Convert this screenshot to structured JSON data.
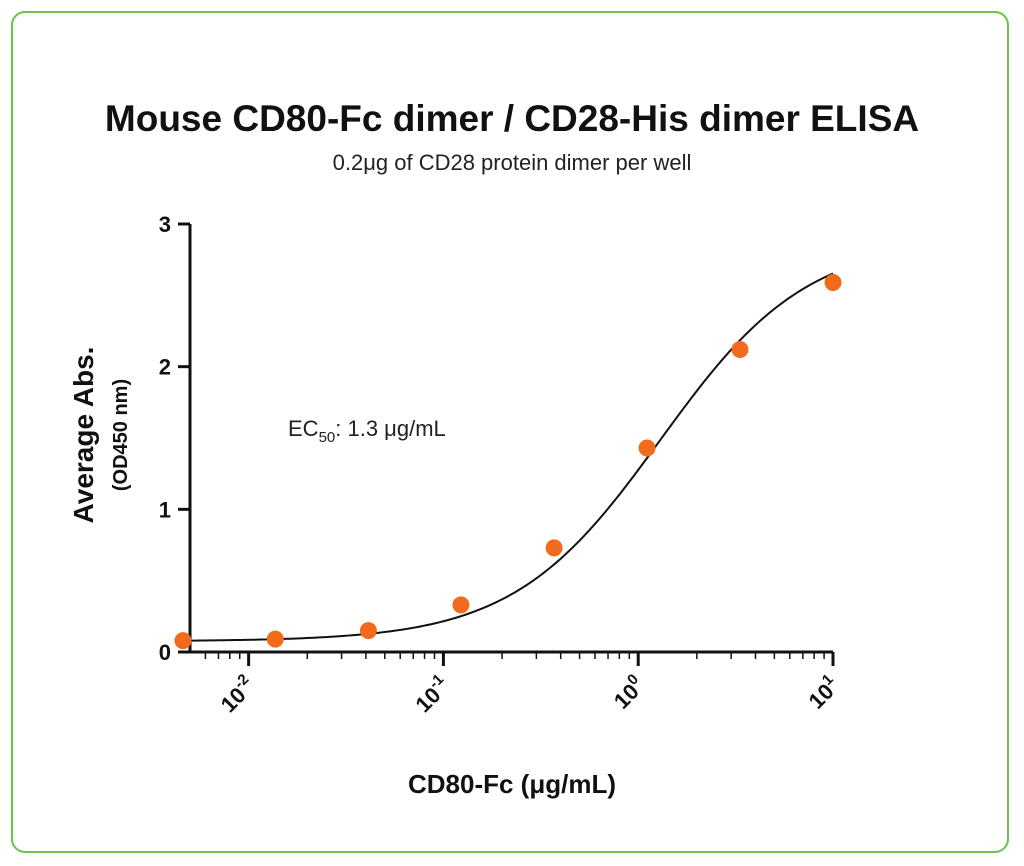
{
  "chart_data": {
    "type": "scatter",
    "title": "Mouse CD80-Fc dimer / CD28-His dimer ELISA",
    "subtitle": "0.2μg of CD28 protein dimer per well",
    "xlabel": "CD80-Fc (μg/mL)",
    "ylabel": "Average Abs.",
    "ylabel_sub": "(OD450 nm)",
    "xscale": "log10",
    "xlim": [
      0.005,
      10
    ],
    "ylim": [
      0,
      3
    ],
    "yticks": [
      "0",
      "1",
      "2",
      "3"
    ],
    "xticks": [
      {
        "base": "10",
        "exp": "-2",
        "value": 0.01
      },
      {
        "base": "10",
        "exp": "-1",
        "value": 0.1
      },
      {
        "base": "10",
        "exp": "0",
        "value": 1
      },
      {
        "base": "10",
        "exp": "1",
        "value": 10
      }
    ],
    "series": [
      {
        "name": "CD80-Fc",
        "color": "#f26b1d",
        "x": [
          0.0046,
          0.0137,
          0.0412,
          0.123,
          0.37,
          1.11,
          3.33,
          10
        ],
        "y": [
          0.08,
          0.09,
          0.15,
          0.33,
          0.73,
          1.43,
          2.12,
          2.59
        ]
      }
    ],
    "fit": {
      "bottom": 0.075,
      "top": 2.9,
      "ec50": 1.3,
      "hill": 1.15,
      "color": "#111111"
    },
    "annotation": {
      "prefix": "EC",
      "sub": "50",
      "suffix": ": 1.3 μg/mL"
    }
  },
  "frame_color": "#6cc24a"
}
